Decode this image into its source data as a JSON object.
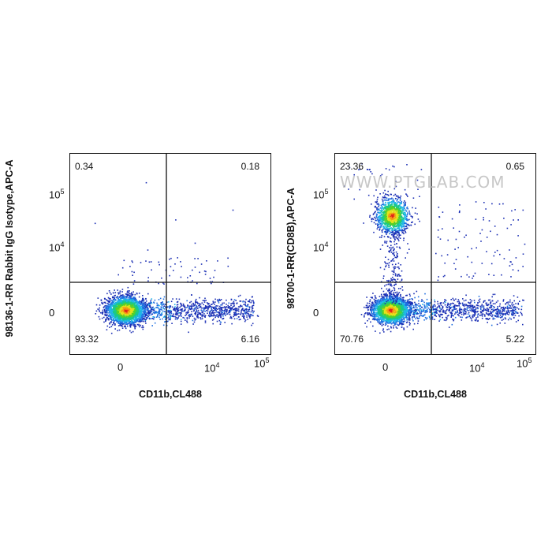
{
  "watermark": "WWW.PTGLAB.COM",
  "chart_data": [
    {
      "type": "scatter",
      "subtype": "flow-cytometry-density-dot-plot",
      "xlabel": "CD11b,CL488",
      "ylabel": "98136-1-RR Rabbit IgG Isotype,APC-A",
      "x_ticks": [
        "0",
        "10^4",
        "10^5"
      ],
      "y_ticks": [
        "0",
        "10^4",
        "10^5"
      ],
      "x_scale": "biexponential",
      "y_scale": "biexponential",
      "gate_lines": {
        "x_axis_gate": "between 0 and 10^4",
        "y_axis_gate": "between 0 and 10^4"
      },
      "quadrants": {
        "upper_left": "0.34",
        "upper_right": "0.18",
        "lower_left": "93.32",
        "lower_right": "6.16"
      },
      "populations": [
        {
          "name": "double-negative",
          "location": "x near 0, y near 0",
          "density": "very high"
        },
        {
          "name": "CD11b+ tail",
          "location": "x from 0 to 10^5, y near 0",
          "density": "low"
        }
      ]
    },
    {
      "type": "scatter",
      "subtype": "flow-cytometry-density-dot-plot",
      "xlabel": "CD11b,CL488",
      "ylabel": "98700-1-RR(CD8B),APC-A",
      "x_ticks": [
        "0",
        "10^4",
        "10^5"
      ],
      "y_ticks": [
        "0",
        "10^4",
        "10^5"
      ],
      "x_scale": "biexponential",
      "y_scale": "biexponential",
      "gate_lines": {
        "x_axis_gate": "between 0 and 10^4",
        "y_axis_gate": "between 0 and 10^4"
      },
      "quadrants": {
        "upper_left": "23.36",
        "upper_right": "0.65",
        "lower_left": "70.76",
        "lower_right": "5.22"
      },
      "populations": [
        {
          "name": "double-negative",
          "location": "x near 0, y near 0",
          "density": "very high"
        },
        {
          "name": "CD8B+ cells",
          "location": "x near 0, y about 10^4.5",
          "density": "high"
        },
        {
          "name": "CD11b+ tail",
          "location": "x from 0 to 10^5, y near 0",
          "density": "low"
        },
        {
          "name": "double-positive scatter",
          "location": "x near 10^4, y near 10^4",
          "density": "sparse"
        }
      ]
    }
  ]
}
